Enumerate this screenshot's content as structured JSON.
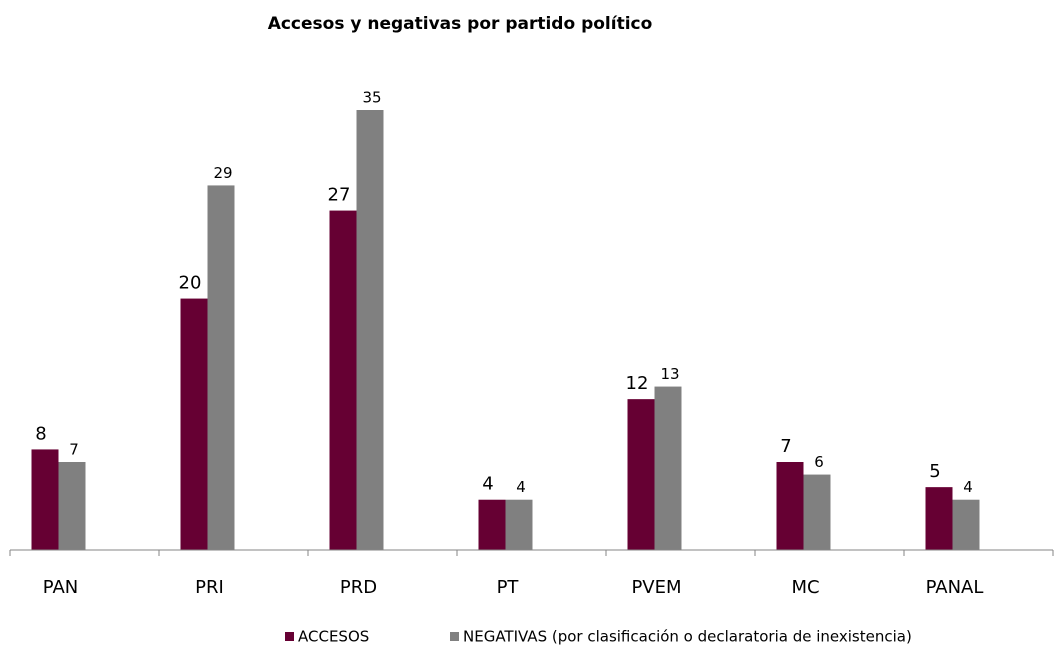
{
  "chart_data": {
    "type": "bar",
    "title": "Accesos y negativas por partido  político",
    "categories": [
      "PAN",
      "PRI",
      "PRD",
      "PT",
      "PVEM",
      "MC",
      "PANAL"
    ],
    "series": [
      {
        "name": "ACCESOS",
        "color": "#660033",
        "values": [
          8,
          20,
          27,
          4,
          12,
          7,
          5
        ]
      },
      {
        "name": "NEGATIVAS (por clasificación o declaratoria de inexistencia)",
        "color": "#808080",
        "values": [
          7,
          29,
          35,
          4,
          13,
          6,
          4
        ]
      }
    ],
    "ylim": [
      0,
      35
    ],
    "legend": "bottom"
  }
}
